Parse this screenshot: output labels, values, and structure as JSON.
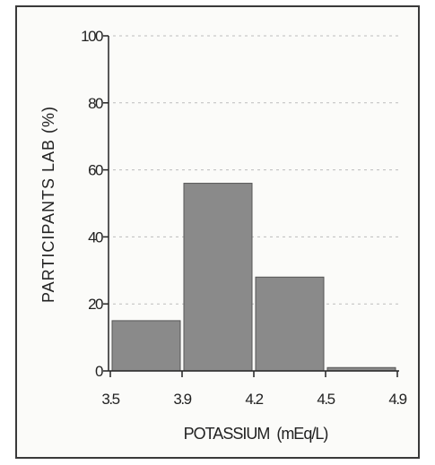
{
  "chart_data": {
    "type": "bar",
    "title": "",
    "xlabel": "POTASSIUM  (mEq/L)",
    "ylabel": "PARTICIPANTS LAB (%)",
    "x_ticks": [
      "3.5",
      "3.9",
      "4.2",
      "4.5",
      "4.9"
    ],
    "y_ticks": [
      "0",
      "20",
      "40",
      "60",
      "80",
      "100"
    ],
    "ylim": [
      0,
      100
    ],
    "grid": true,
    "bins": [
      {
        "from": "3.5",
        "to": "3.9",
        "value": 15
      },
      {
        "from": "3.9",
        "to": "4.2",
        "value": 56
      },
      {
        "from": "4.2",
        "to": "4.5",
        "value": 28
      },
      {
        "from": "4.5",
        "to": "4.9",
        "value": 1
      }
    ],
    "bar_color": "#8a8a8a"
  }
}
